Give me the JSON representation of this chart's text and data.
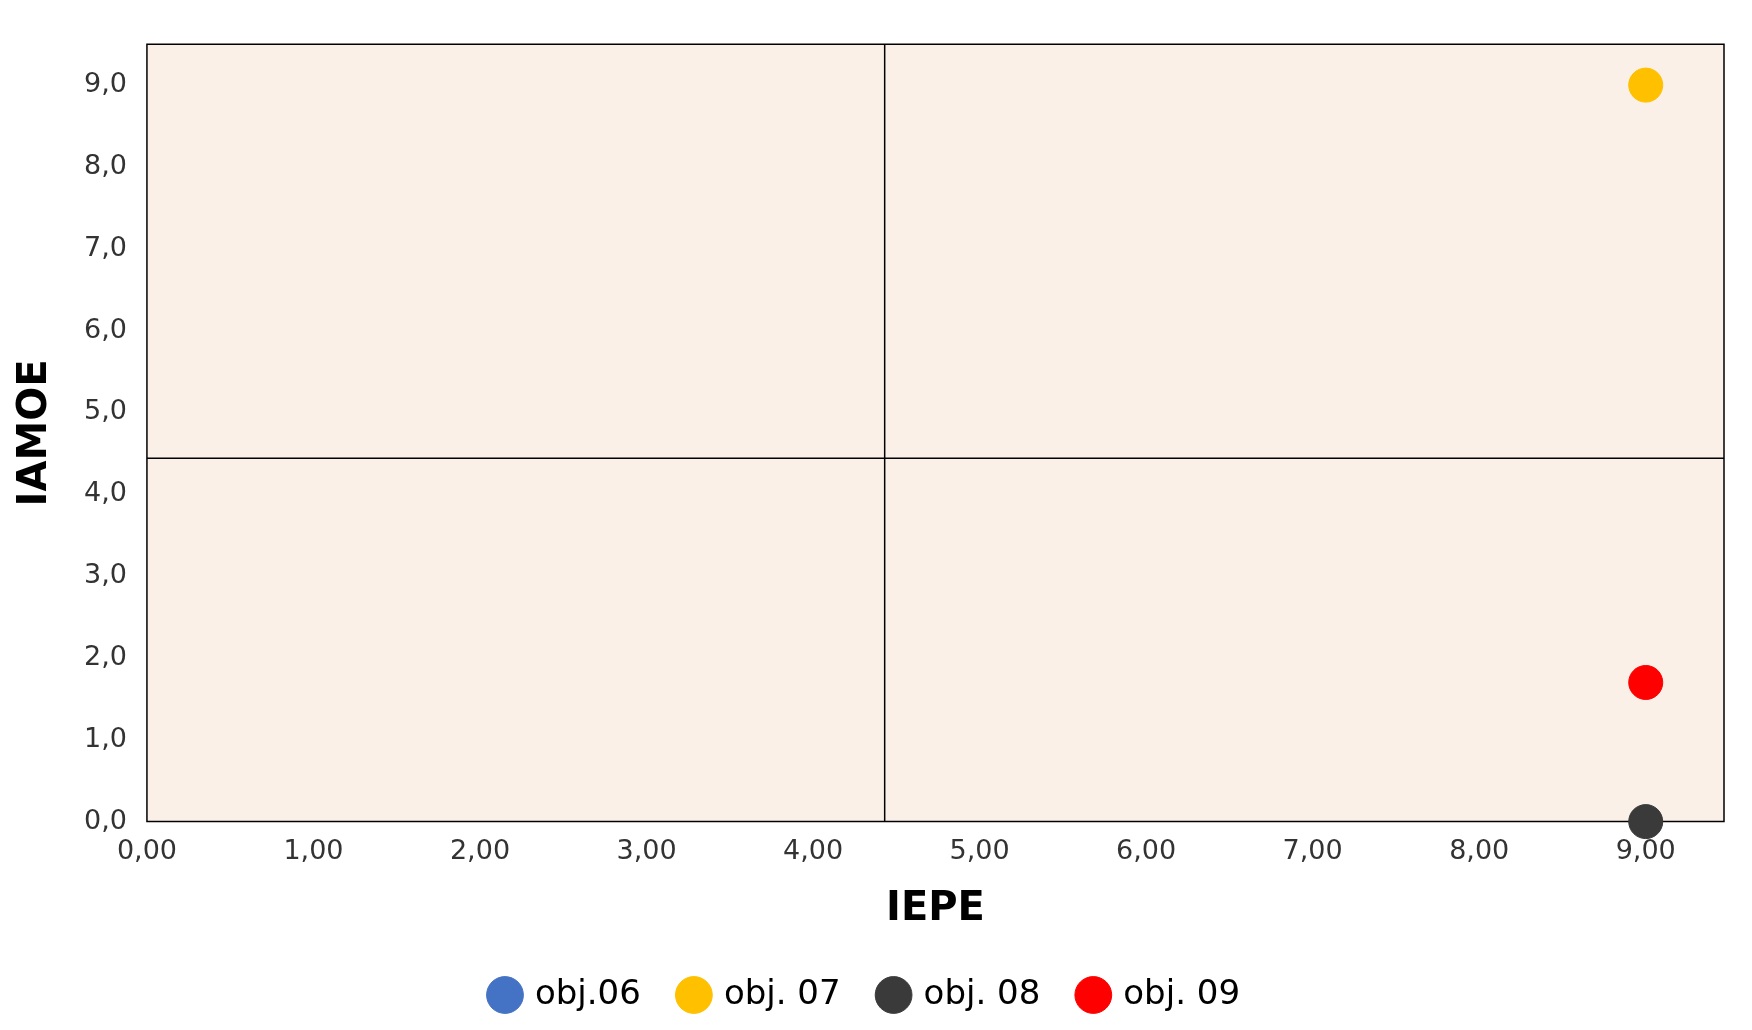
{
  "chart_data": {
    "type": "scatter",
    "xlabel": "IEPE",
    "ylabel": "IAMOE",
    "xlim": [
      0,
      9.47
    ],
    "ylim": [
      0,
      9.5
    ],
    "xticks": [
      {
        "value": 0,
        "label": "0,00"
      },
      {
        "value": 1,
        "label": "1,00"
      },
      {
        "value": 2,
        "label": "2,00"
      },
      {
        "value": 3,
        "label": "3,00"
      },
      {
        "value": 4,
        "label": "4,00"
      },
      {
        "value": 5,
        "label": "5,00"
      },
      {
        "value": 6,
        "label": "6,00"
      },
      {
        "value": 7,
        "label": "7,00"
      },
      {
        "value": 8,
        "label": "8,00"
      },
      {
        "value": 9,
        "label": "9,00"
      }
    ],
    "yticks": [
      {
        "value": 0,
        "label": "0,0"
      },
      {
        "value": 1,
        "label": "1,0"
      },
      {
        "value": 2,
        "label": "2,0"
      },
      {
        "value": 3,
        "label": "3,0"
      },
      {
        "value": 4,
        "label": "4,0"
      },
      {
        "value": 5,
        "label": "5,0"
      },
      {
        "value": 6,
        "label": "6,0"
      },
      {
        "value": 7,
        "label": "7,0"
      },
      {
        "value": 8,
        "label": "8,0"
      },
      {
        "value": 9,
        "label": "9,0"
      }
    ],
    "x": [
      9
    ],
    "series": [
      {
        "name": "obj.06",
        "color": "#4472c4",
        "values": [
          null
        ]
      },
      {
        "name": "obj. 07",
        "color": "#ffc000",
        "values": [
          9.0
        ]
      },
      {
        "name": "obj. 08",
        "color": "#3a3a3a",
        "values": [
          0.0
        ]
      },
      {
        "name": "obj. 09",
        "color": "#ff0000",
        "values": [
          1.7
        ]
      }
    ],
    "ref_lines": [
      {
        "axis": "x",
        "value": 4.43,
        "color": "#000000"
      },
      {
        "axis": "y",
        "value": 4.44,
        "color": "#000000"
      }
    ],
    "grid": false,
    "legend": "bottom",
    "marker": "circle"
  }
}
